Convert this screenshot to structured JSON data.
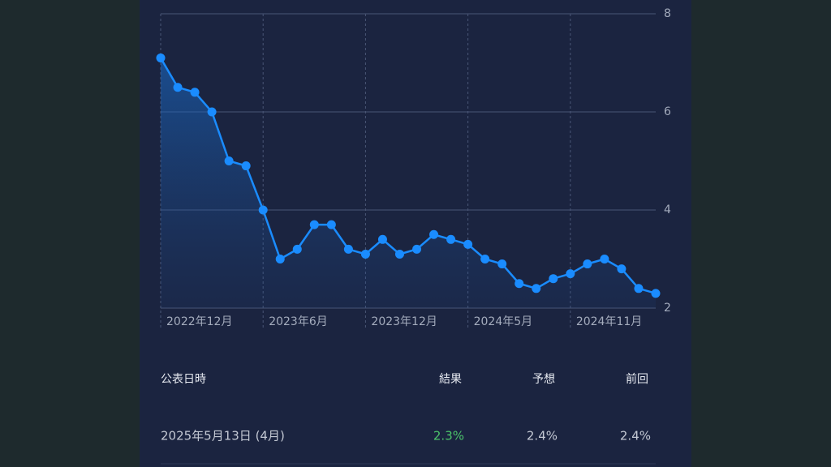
{
  "chart_data": {
    "type": "line",
    "categories": [
      "2022年12月",
      null,
      null,
      null,
      null,
      null,
      "2023年6月",
      null,
      null,
      null,
      null,
      null,
      "2023年12月",
      null,
      null,
      null,
      null,
      null,
      "2024年5月",
      null,
      null,
      null,
      null,
      null,
      "2024年11月",
      null,
      null,
      null,
      null,
      null
    ],
    "series": [
      {
        "color": "#1a8cff",
        "values": [
          7.1,
          6.5,
          6.4,
          6.0,
          5.0,
          4.9,
          4.0,
          3.0,
          3.2,
          3.7,
          3.7,
          3.2,
          3.1,
          3.4,
          3.1,
          3.2,
          3.5,
          3.4,
          3.3,
          3.0,
          2.9,
          2.5,
          2.4,
          2.6,
          2.7,
          2.9,
          3.0,
          2.8,
          2.4,
          2.3
        ]
      }
    ],
    "ylim": [
      2,
      8
    ],
    "yticks": [
      2,
      4,
      6,
      8
    ],
    "grid": true
  },
  "table": {
    "header": [
      "公表日時",
      "結果",
      "予想",
      "前回"
    ],
    "rows": [
      [
        "2025年5月13日 (4月)",
        "2.3%",
        "2.4%",
        "2.4%"
      ]
    ]
  }
}
